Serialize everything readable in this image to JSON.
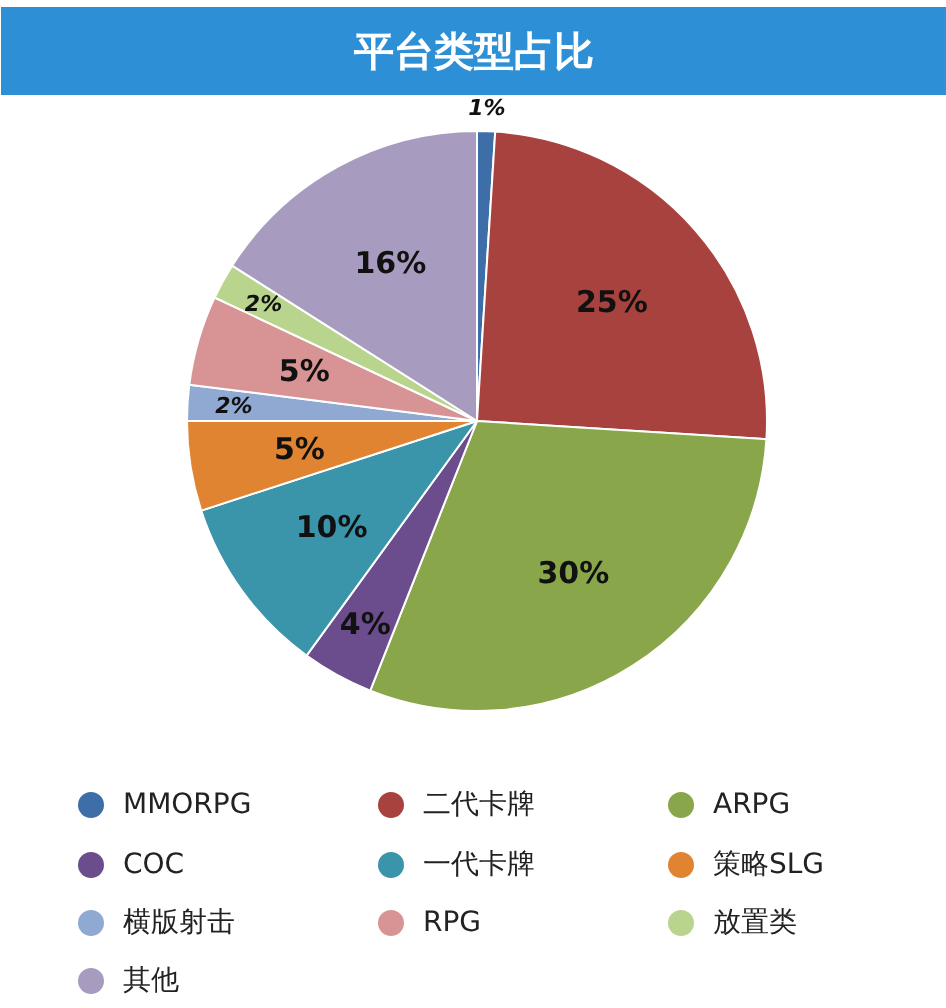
{
  "chart_data": {
    "type": "pie",
    "title": "平台类型占比",
    "categories": [
      "MMORPG",
      "二代卡牌",
      "ARPG",
      "COC",
      "一代卡牌",
      "策略SLG",
      "横版射击",
      "RPG",
      "放置类",
      "其他"
    ],
    "values": [
      1,
      25,
      30,
      4,
      10,
      5,
      2,
      5,
      2,
      16
    ],
    "colors": [
      "#3d6ea8",
      "#a8423f",
      "#8aa64a",
      "#6b4c8c",
      "#3a94aa",
      "#e08432",
      "#8fa9d2",
      "#d89494",
      "#b9d48d",
      "#a89bc0"
    ],
    "value_labels": [
      "1%",
      "25%",
      "30%",
      "4%",
      "10%",
      "5%",
      "2%",
      "5%",
      "2%",
      "16%"
    ],
    "legend": "bottom"
  }
}
